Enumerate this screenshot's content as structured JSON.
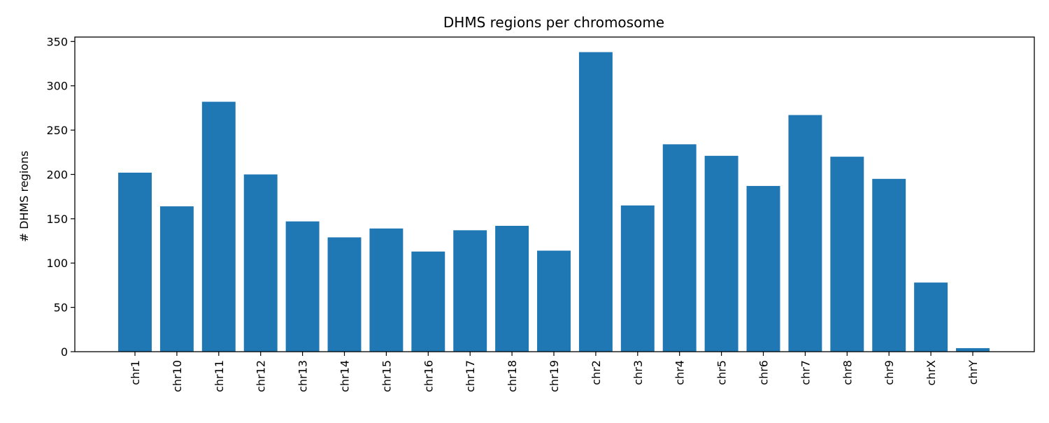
{
  "chart_data": {
    "type": "bar",
    "title": "DHMS regions per chromosome",
    "xlabel": "",
    "ylabel": "# DHMS regions",
    "categories": [
      "chr1",
      "chr10",
      "chr11",
      "chr12",
      "chr13",
      "chr14",
      "chr15",
      "chr16",
      "chr17",
      "chr18",
      "chr19",
      "chr2",
      "chr3",
      "chr4",
      "chr5",
      "chr6",
      "chr7",
      "chr8",
      "chr9",
      "chrX",
      "chrY"
    ],
    "values": [
      202,
      164,
      282,
      200,
      147,
      129,
      139,
      113,
      137,
      142,
      114,
      338,
      165,
      234,
      221,
      187,
      267,
      220,
      195,
      78,
      4
    ],
    "ylim": [
      0,
      355
    ],
    "yticks": [
      0,
      50,
      100,
      150,
      200,
      250,
      300,
      350
    ],
    "bar_color": "#1f77b4",
    "grid": false,
    "legend": "none"
  }
}
